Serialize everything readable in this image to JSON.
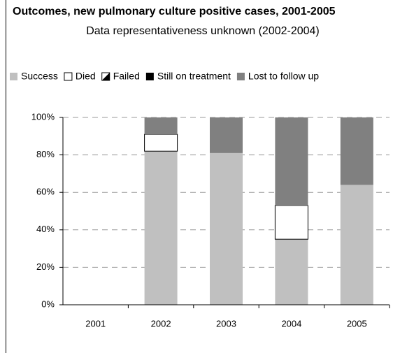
{
  "chart_data": {
    "type": "stacked_bar",
    "title": "Outcomes, new pulmonary culture positive cases, 2001-2005",
    "subtitle": "Data representativeness unknown (2002-2004)",
    "categories": [
      "2001",
      "2002",
      "2003",
      "2004",
      "2005"
    ],
    "series": [
      {
        "name": "Success",
        "color": "#c0c0c0",
        "values": [
          null,
          82,
          81,
          35,
          64
        ]
      },
      {
        "name": "Died",
        "color": "#ffffff",
        "values": [
          null,
          9,
          0,
          18,
          0
        ]
      },
      {
        "name": "Failed",
        "color": "#000000",
        "pattern": "diagonal",
        "values": [
          null,
          0,
          0,
          0,
          0
        ]
      },
      {
        "name": "Still on treatment",
        "color": "#000000",
        "values": [
          null,
          0,
          0,
          0,
          0
        ]
      },
      {
        "name": "Lost to follow up",
        "color": "#808080",
        "values": [
          null,
          9,
          19,
          47,
          36
        ]
      }
    ],
    "ylim": [
      0,
      100
    ],
    "yticks": [
      {
        "value": 0,
        "label": "0%"
      },
      {
        "value": 20,
        "label": "20%"
      },
      {
        "value": 40,
        "label": "40%"
      },
      {
        "value": 60,
        "label": "60%"
      },
      {
        "value": 80,
        "label": "80%"
      },
      {
        "value": 100,
        "label": "100%"
      }
    ],
    "grid": true,
    "legend": "top"
  }
}
